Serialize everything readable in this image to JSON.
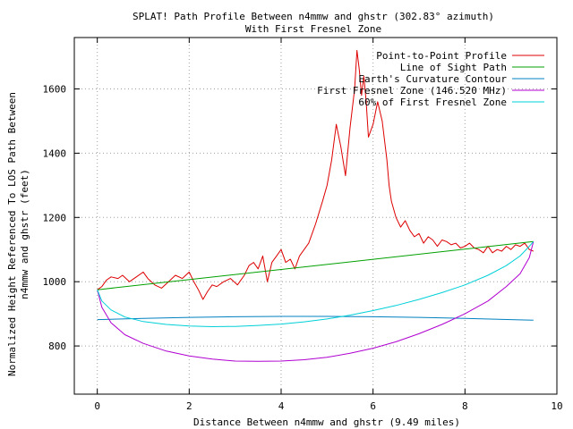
{
  "chart_data": {
    "type": "line",
    "title": "SPLAT! Path Profile Between n4mmw and ghstr (302.83° azimuth)",
    "subtitle": "With First Fresnel Zone",
    "xlabel": "Distance Between n4mmw and ghstr (9.49 miles)",
    "ylabel_lines": [
      "Normalized Height Referenced To LOS Path Between",
      "n4mmw and ghstr (feet)"
    ],
    "xlim": [
      -0.5,
      10
    ],
    "ylim": [
      650,
      1760
    ],
    "x_ticks": [
      0,
      2,
      4,
      6,
      8,
      10
    ],
    "y_ticks": [
      800,
      1000,
      1200,
      1400,
      1600
    ],
    "grid": true,
    "legend_position": "top-right",
    "series": [
      {
        "name": "Point-to-Point Profile",
        "color": "#dd0000",
        "x": [
          0.0,
          0.1,
          0.2,
          0.3,
          0.45,
          0.55,
          0.7,
          0.85,
          1.0,
          1.1,
          1.25,
          1.4,
          1.55,
          1.7,
          1.85,
          2.0,
          2.1,
          2.2,
          2.3,
          2.4,
          2.5,
          2.6,
          2.75,
          2.9,
          3.05,
          3.2,
          3.3,
          3.4,
          3.5,
          3.6,
          3.7,
          3.8,
          3.9,
          4.0,
          4.1,
          4.2,
          4.3,
          4.4,
          4.5,
          4.6,
          4.75,
          4.9,
          5.0,
          5.1,
          5.2,
          5.3,
          5.4,
          5.5,
          5.6,
          5.65,
          5.7,
          5.75,
          5.8,
          5.85,
          5.9,
          6.0,
          6.1,
          6.2,
          6.3,
          6.35,
          6.4,
          6.5,
          6.6,
          6.7,
          6.8,
          6.9,
          7.0,
          7.1,
          7.2,
          7.3,
          7.4,
          7.5,
          7.6,
          7.7,
          7.8,
          7.9,
          8.0,
          8.1,
          8.2,
          8.3,
          8.4,
          8.5,
          8.6,
          8.7,
          8.8,
          8.9,
          9.0,
          9.1,
          9.2,
          9.3,
          9.4,
          9.49
        ],
        "values": [
          975,
          985,
          1005,
          1015,
          1010,
          1020,
          1000,
          1015,
          1030,
          1010,
          990,
          980,
          1000,
          1020,
          1010,
          1030,
          1000,
          975,
          945,
          970,
          990,
          985,
          1000,
          1010,
          990,
          1020,
          1050,
          1060,
          1040,
          1080,
          1000,
          1060,
          1080,
          1100,
          1060,
          1070,
          1040,
          1080,
          1100,
          1120,
          1180,
          1250,
          1300,
          1380,
          1490,
          1420,
          1330,
          1480,
          1600,
          1720,
          1660,
          1580,
          1640,
          1560,
          1450,
          1490,
          1560,
          1500,
          1380,
          1300,
          1250,
          1200,
          1170,
          1190,
          1160,
          1140,
          1150,
          1120,
          1140,
          1130,
          1110,
          1130,
          1125,
          1115,
          1120,
          1105,
          1110,
          1120,
          1105,
          1100,
          1090,
          1110,
          1090,
          1100,
          1095,
          1110,
          1100,
          1115,
          1110,
          1120,
          1100,
          1095
        ]
      },
      {
        "name": "Line of Sight Path",
        "color": "#00a000",
        "x": [
          0.0,
          9.49
        ],
        "values": [
          975,
          1125
        ]
      },
      {
        "name": "Earth's Curvature Contour",
        "color": "#0080c0",
        "x": [
          0.0,
          1.0,
          2.0,
          3.0,
          4.0,
          5.0,
          6.0,
          7.0,
          8.0,
          9.0,
          9.49
        ],
        "values": [
          882,
          886,
          889,
          891,
          892,
          892,
          891,
          889,
          886,
          882,
          880
        ]
      },
      {
        "name": "First Fresnel Zone (146.520 MHz)",
        "color": "#b000d0",
        "x": [
          0.0,
          0.1,
          0.3,
          0.6,
          1.0,
          1.5,
          2.0,
          2.5,
          3.0,
          3.5,
          4.0,
          4.5,
          5.0,
          5.5,
          6.0,
          6.5,
          7.0,
          7.5,
          8.0,
          8.5,
          8.9,
          9.2,
          9.4,
          9.49
        ],
        "values": [
          975,
          920,
          872,
          835,
          808,
          784,
          769,
          759,
          753,
          752,
          753,
          757,
          765,
          777,
          793,
          813,
          838,
          867,
          900,
          940,
          985,
          1025,
          1075,
          1125
        ]
      },
      {
        "name": "60% of First Fresnel Zone",
        "color": "#00d0d8",
        "x": [
          0.0,
          0.1,
          0.3,
          0.6,
          1.0,
          1.5,
          2.0,
          2.5,
          3.0,
          3.5,
          4.0,
          4.5,
          5.0,
          5.5,
          6.0,
          6.5,
          7.0,
          7.5,
          8.0,
          8.5,
          8.9,
          9.2,
          9.4,
          9.49
        ],
        "values": [
          975,
          940,
          912,
          890,
          876,
          867,
          862,
          860,
          861,
          864,
          868,
          875,
          884,
          896,
          910,
          926,
          945,
          966,
          990,
          1020,
          1050,
          1080,
          1110,
          1125
        ]
      }
    ]
  }
}
